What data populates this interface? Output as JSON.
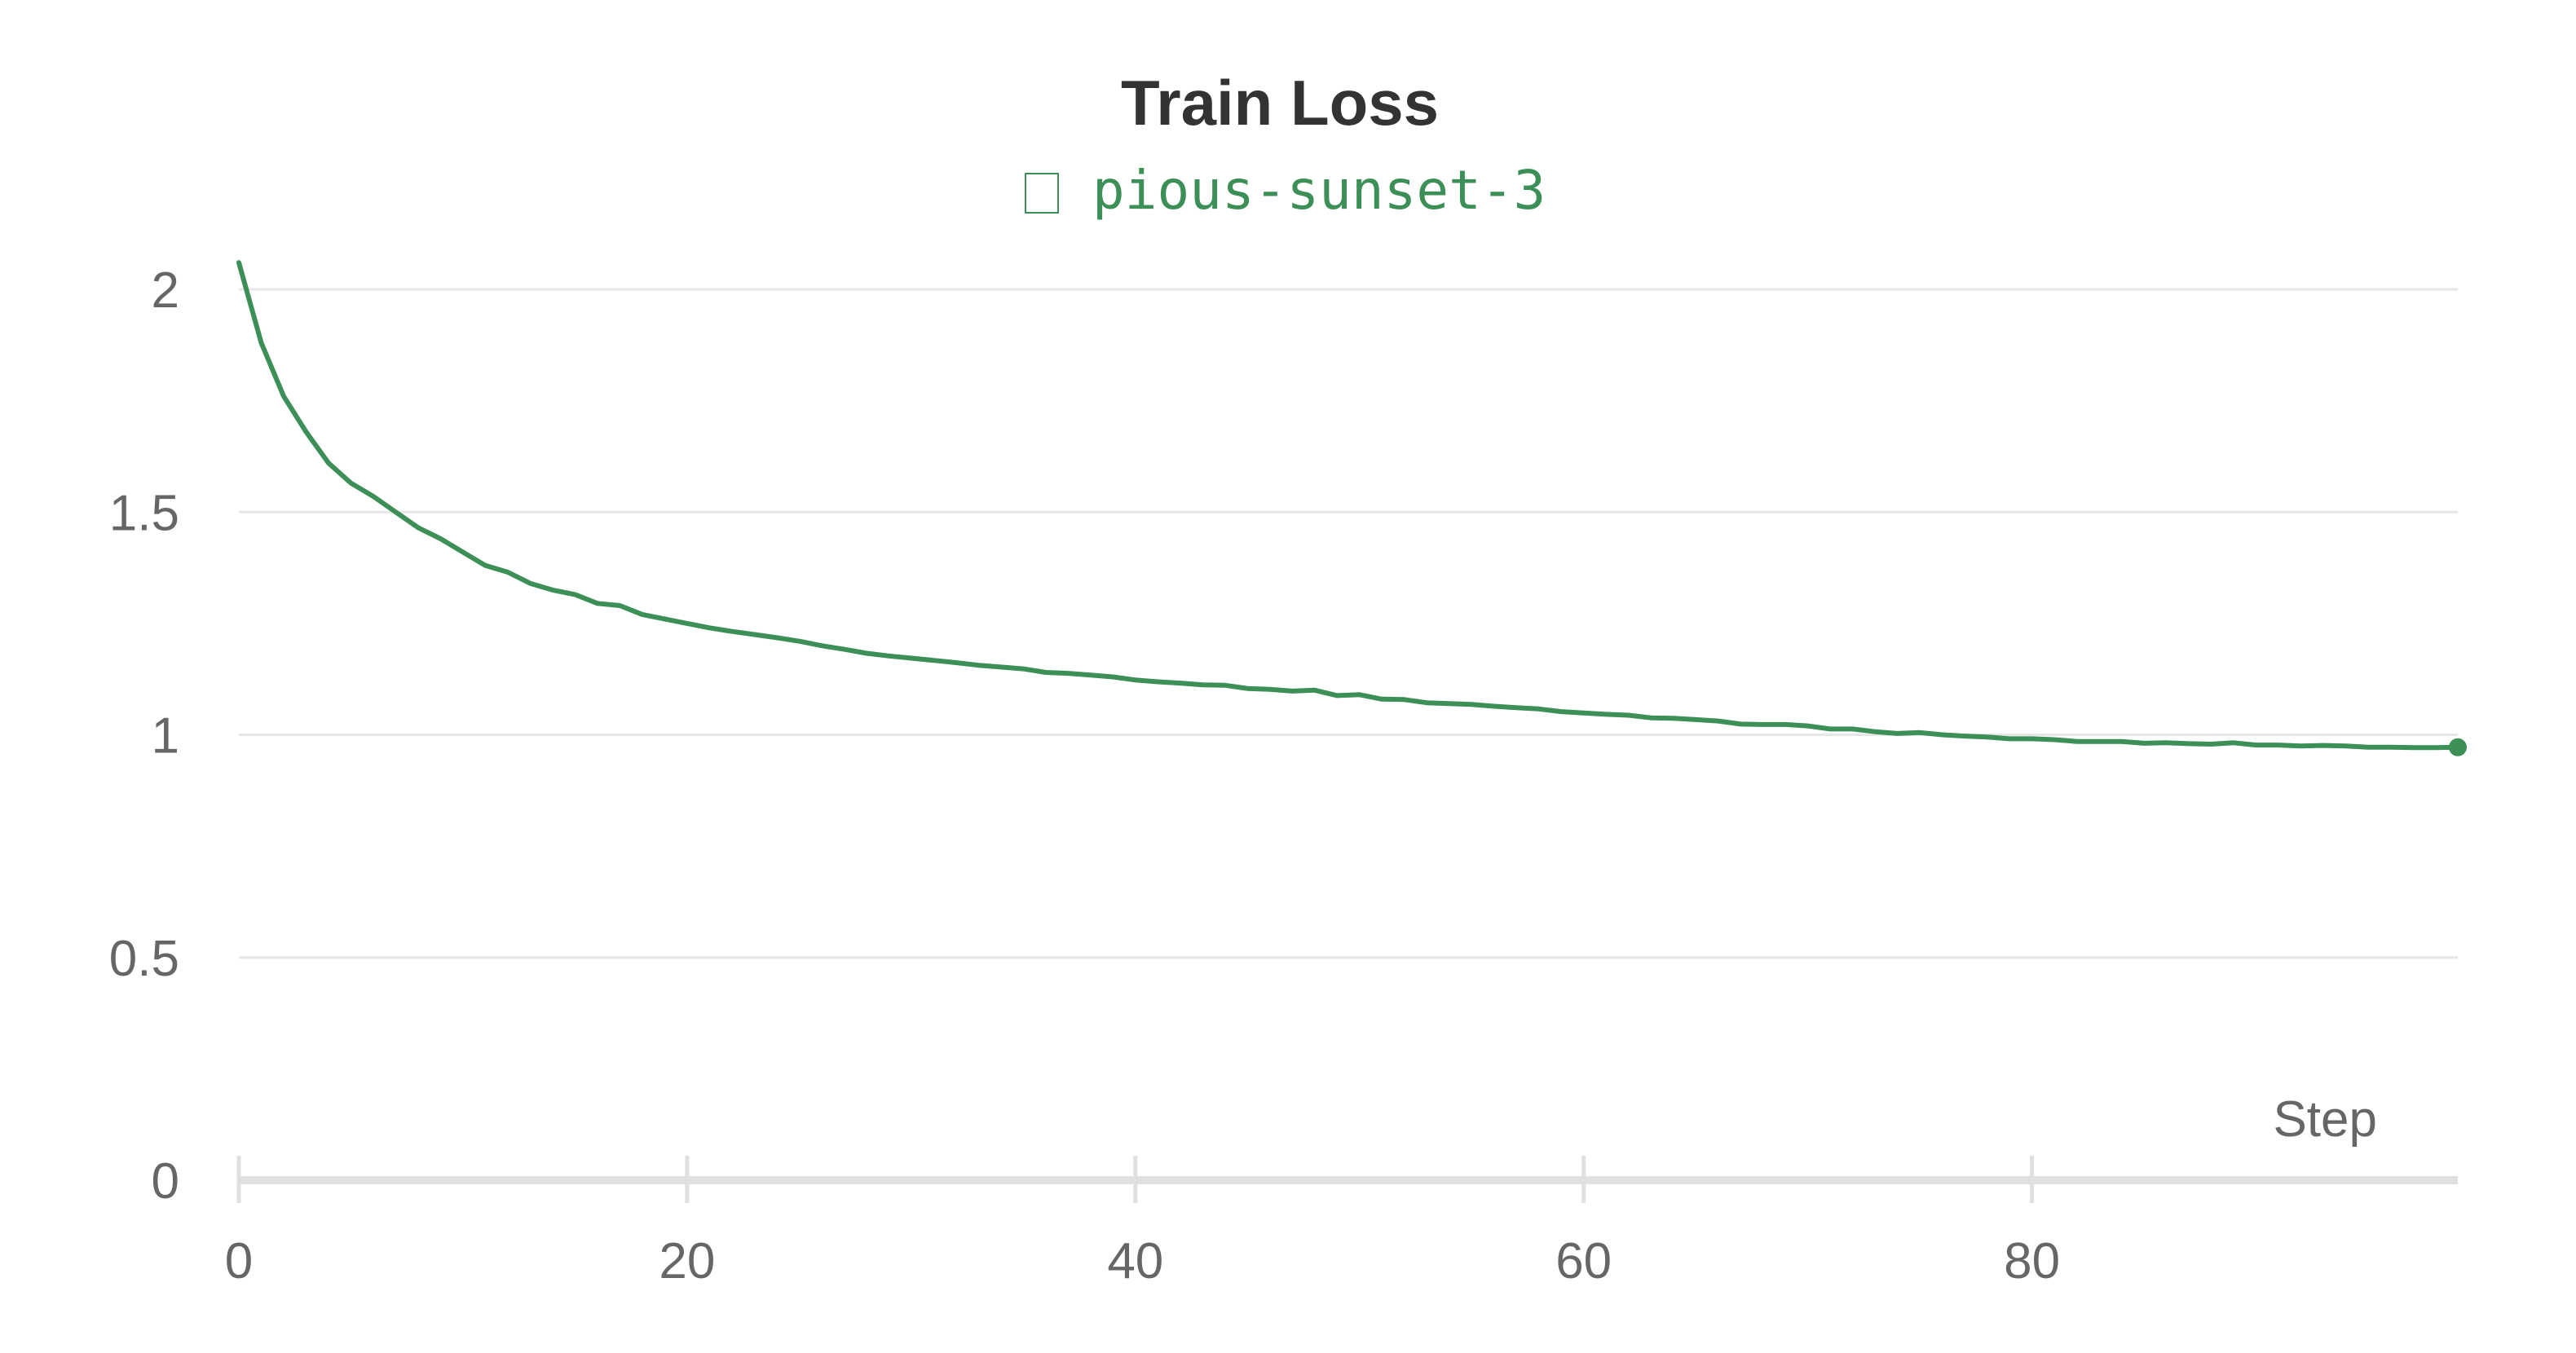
{
  "chart_data": {
    "type": "line",
    "title": "Train Loss",
    "legend": {
      "entries": [
        {
          "name": "pious-sunset-3",
          "color": "#3d8f58",
          "icon": "run-color-swatch-icon"
        }
      ],
      "placement": "top-center"
    },
    "xlabel": "Step",
    "ylabel": "",
    "xlim": [
      0,
      99
    ],
    "ylim": [
      0,
      2
    ],
    "x_ticks": [
      0,
      20,
      40,
      60,
      80
    ],
    "x_tick_labels": [
      "0",
      "20",
      "40",
      "60",
      "80"
    ],
    "y_ticks": [
      0,
      0.5,
      1,
      1.5,
      2
    ],
    "y_tick_labels": [
      "0",
      "0.5",
      "1",
      "1.5",
      "2"
    ],
    "grid": {
      "horizontal": true,
      "vertical": false
    },
    "colors": {
      "series": "#3d8f58",
      "grid": "#e6e6e6",
      "axis": "#e0e0e0",
      "tick_label": "#666666",
      "title": "#333333"
    },
    "series": [
      {
        "name": "pious-sunset-3",
        "last_point_marker": true,
        "x": [
          0,
          1,
          2,
          3,
          4,
          5,
          6,
          7,
          8,
          9,
          10,
          11,
          12,
          13,
          14,
          15,
          16,
          17,
          18,
          19,
          20,
          21,
          22,
          23,
          24,
          25,
          26,
          27,
          28,
          29,
          30,
          31,
          32,
          33,
          34,
          35,
          36,
          37,
          38,
          39,
          40,
          41,
          42,
          43,
          44,
          45,
          46,
          47,
          48,
          49,
          50,
          51,
          52,
          53,
          54,
          55,
          56,
          57,
          58,
          59,
          60,
          61,
          62,
          63,
          64,
          65,
          66,
          67,
          68,
          69,
          70,
          71,
          72,
          73,
          74,
          75,
          76,
          77,
          78,
          79,
          80,
          81,
          82,
          83,
          84,
          85,
          86,
          87,
          88,
          89,
          90,
          91,
          92,
          93,
          94,
          95,
          96,
          97,
          98,
          99
        ],
        "values": [
          2.06,
          1.88,
          1.76,
          1.68,
          1.61,
          1.565,
          1.535,
          1.5,
          1.465,
          1.44,
          1.41,
          1.38,
          1.365,
          1.34,
          1.325,
          1.315,
          1.295,
          1.29,
          1.27,
          1.26,
          1.25,
          1.24,
          1.232,
          1.225,
          1.218,
          1.21,
          1.2,
          1.192,
          1.183,
          1.177,
          1.172,
          1.167,
          1.162,
          1.156,
          1.152,
          1.148,
          1.14,
          1.138,
          1.134,
          1.13,
          1.123,
          1.119,
          1.116,
          1.112,
          1.111,
          1.104,
          1.102,
          1.098,
          1.1,
          1.088,
          1.09,
          1.08,
          1.079,
          1.072,
          1.07,
          1.068,
          1.064,
          1.061,
          1.058,
          1.052,
          1.049,
          1.046,
          1.044,
          1.038,
          1.037,
          1.034,
          1.031,
          1.024,
          1.023,
          1.023,
          1.02,
          1.013,
          1.013,
          1.007,
          1.003,
          1.005,
          1.0,
          0.997,
          0.995,
          0.991,
          0.991,
          0.989,
          0.985,
          0.985,
          0.985,
          0.981,
          0.982,
          0.98,
          0.979,
          0.982,
          0.977,
          0.977,
          0.975,
          0.976,
          0.975,
          0.972,
          0.972,
          0.971,
          0.971,
          0.972
        ]
      }
    ]
  }
}
